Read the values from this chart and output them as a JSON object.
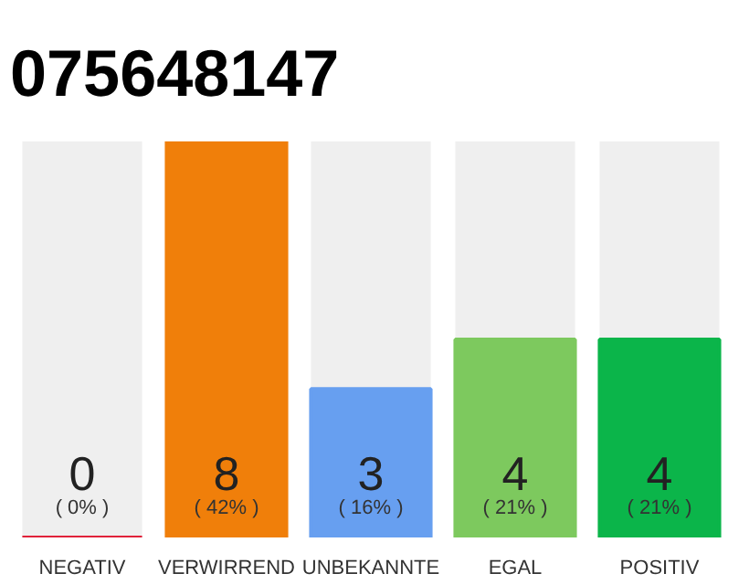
{
  "chart_data": {
    "type": "bar",
    "title": "075648147",
    "categories": [
      "NEGATIV",
      "VERWIRREND",
      "UNBEKANNTE",
      "EGAL",
      "POSITIV"
    ],
    "values": [
      0,
      8,
      3,
      4,
      4
    ],
    "colors": [
      "#e0223a",
      "#f07f0a",
      "#679ff0",
      "#7dc95e",
      "#0bb54a"
    ],
    "value_labels": [
      "0",
      "8",
      "3",
      "4",
      "4"
    ],
    "grid": false,
    "annotations": [
      {
        "text": "( 0% )",
        "x": "NEGATIV",
        "y": 0
      },
      {
        "text": "( 42% )",
        "x": "VERWIRREND",
        "y": 0
      },
      {
        "text": "( 16% )",
        "x": "UNBEKANNTE",
        "y": 0
      },
      {
        "text": "( 21% )",
        "x": "EGAL",
        "y": 0
      },
      {
        "text": "( 21% )",
        "x": "POSITIV",
        "y": 0
      }
    ]
  }
}
